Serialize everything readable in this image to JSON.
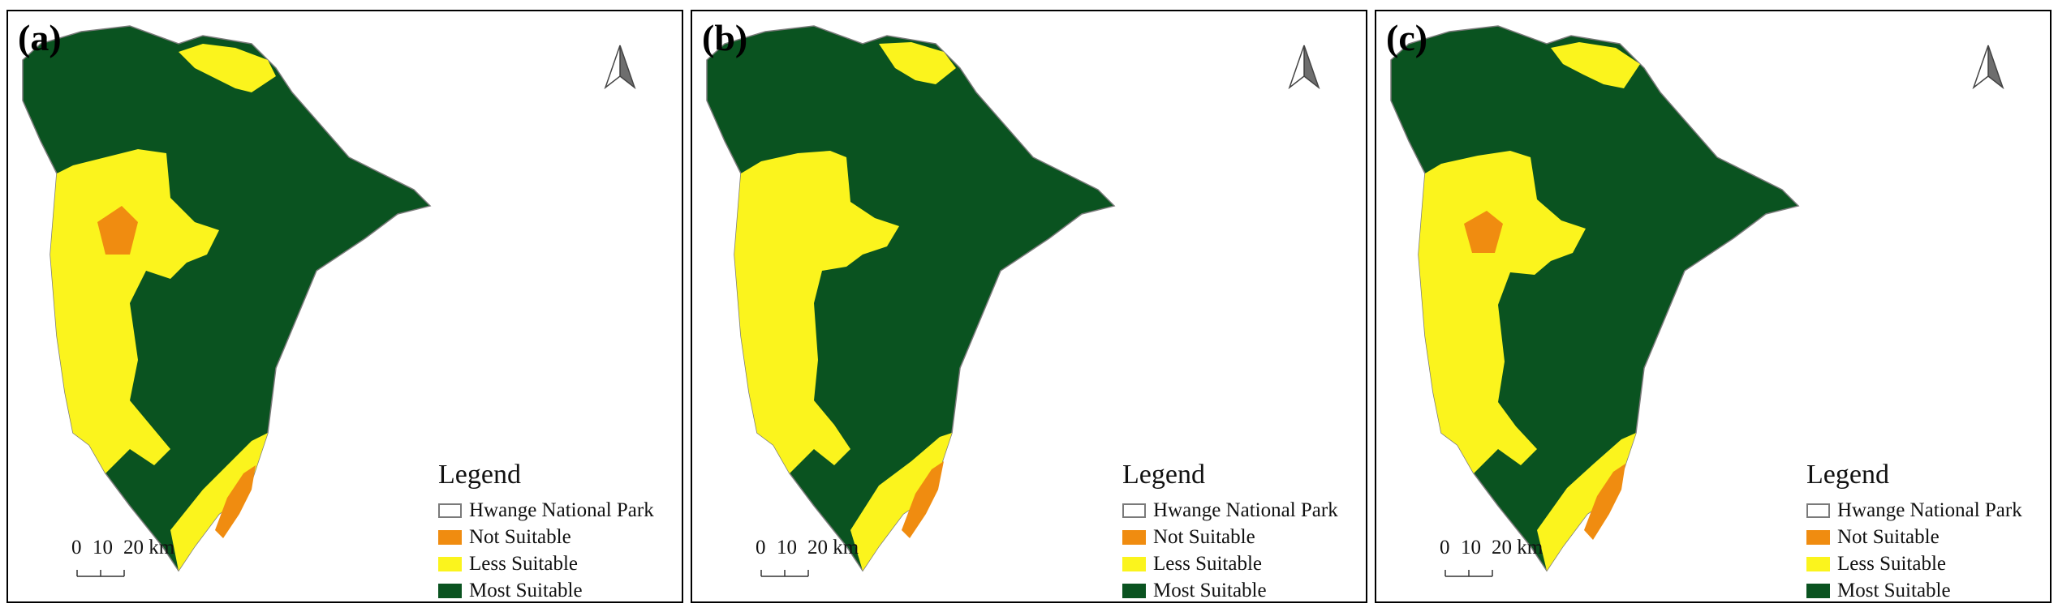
{
  "colors": {
    "park_outline": "#7a7a7a",
    "not_suitable": "#f08c10",
    "less_suitable": "#fbf41d",
    "most_suitable": "#0a5320",
    "frame": "#000000"
  },
  "legend": {
    "title": "Legend",
    "items": [
      {
        "label": "Hwange National Park",
        "color": "#ffffff",
        "outline": "#7a7a7a"
      },
      {
        "label": "Not Suitable",
        "color": "#f08c10"
      },
      {
        "label": "Less Suitable",
        "color": "#fbf41d"
      },
      {
        "label": "Most Suitable",
        "color": "#0a5320"
      }
    ]
  },
  "scale_bar": {
    "ticks": [
      "0",
      "10",
      "20 km"
    ]
  },
  "north_arrow": {
    "icon": "north-arrow-icon"
  },
  "panels": [
    {
      "label": "(a)"
    },
    {
      "label": "(b)"
    },
    {
      "label": "(c)"
    }
  ]
}
